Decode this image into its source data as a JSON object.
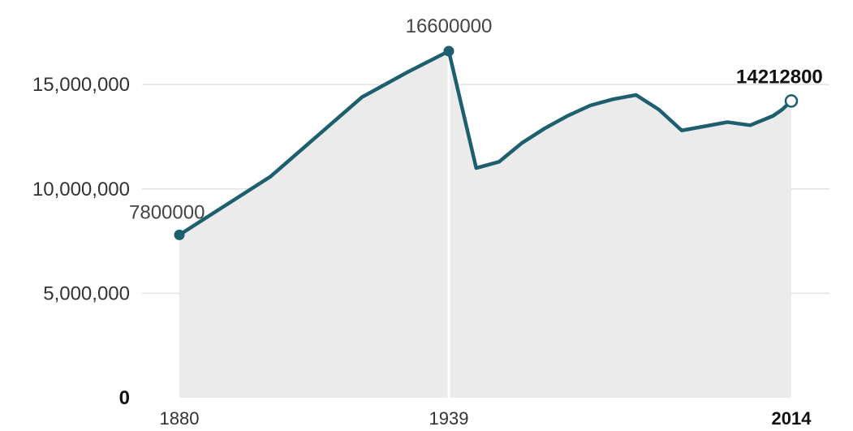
{
  "chart_data": {
    "type": "area",
    "x": [
      1880,
      1890,
      1900,
      1910,
      1920,
      1930,
      1939,
      1945,
      1950,
      1955,
      1960,
      1965,
      1970,
      1975,
      1980,
      1985,
      1990,
      1995,
      2000,
      2005,
      2010,
      2012,
      2014
    ],
    "values": [
      7800000,
      9200000,
      10600000,
      12500000,
      14400000,
      15600000,
      16600000,
      11000000,
      11300000,
      12200000,
      12900000,
      13500000,
      14000000,
      14300000,
      14500000,
      13800000,
      12800000,
      13000000,
      13200000,
      13050000,
      13500000,
      13800000,
      14212800
    ],
    "xticks": [
      "1880",
      "1939",
      "2014"
    ],
    "yticks": [
      "0",
      "5,000,000",
      "10,000,000",
      "15,000,000"
    ],
    "ylim": [
      0,
      16600000
    ],
    "xlim": [
      1880,
      2014
    ],
    "grid": true,
    "annotations": [
      {
        "x": 1880,
        "y": 7800000,
        "text": "7800000",
        "bold": false,
        "marker": "filled"
      },
      {
        "x": 1939,
        "y": 16600000,
        "text": "16600000",
        "bold": false,
        "marker": "filled"
      },
      {
        "x": 2014,
        "y": 14212800,
        "text": "14212800",
        "bold": true,
        "marker": "hollow"
      }
    ],
    "vline_x": 1939,
    "colors": {
      "line": "#1d5f6e",
      "fill": "#ebebeb",
      "grid": "#e2e2e2",
      "vline": "#ffffff"
    }
  }
}
